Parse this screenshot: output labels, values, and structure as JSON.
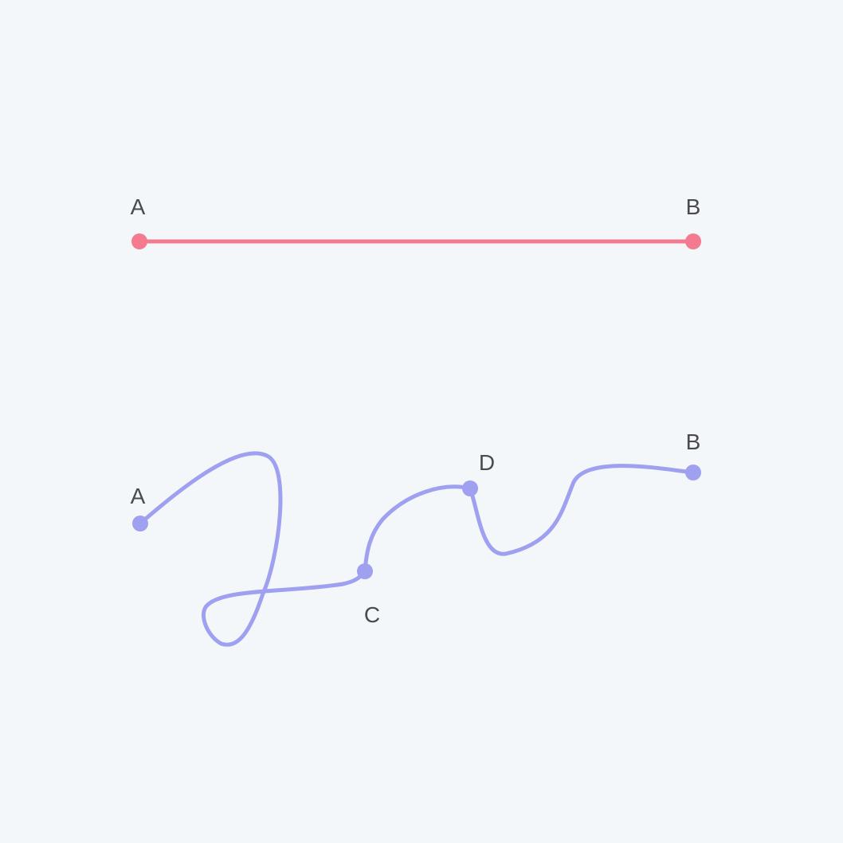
{
  "colors": {
    "background": "#f4f7f9",
    "straight_path": "#f47a90",
    "curved_path": "#9fa0f0",
    "label_text": "#4a4a4f"
  },
  "straight_path": {
    "start_label": "A",
    "end_label": "B"
  },
  "curved_path": {
    "start_label": "A",
    "end_label": "B",
    "waypoints": [
      {
        "label": "C"
      },
      {
        "label": "D"
      }
    ]
  }
}
